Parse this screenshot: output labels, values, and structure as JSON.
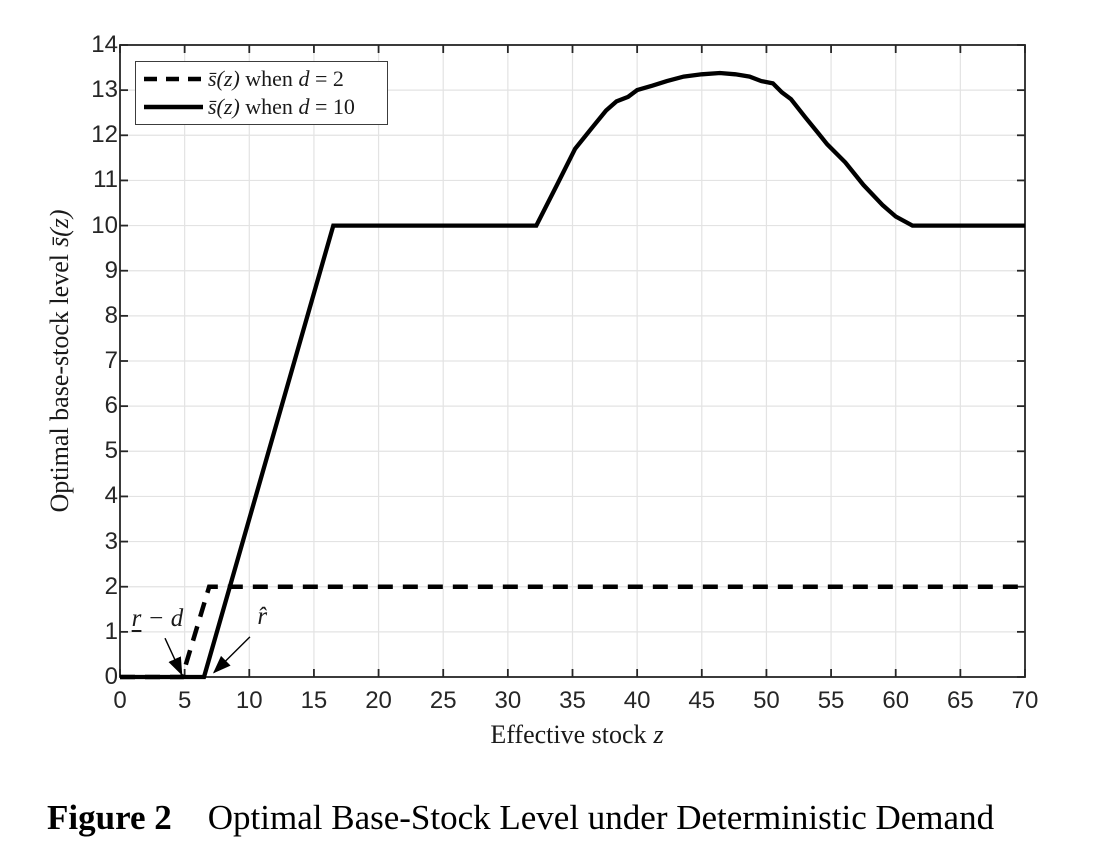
{
  "figure": {
    "caption_label": "Figure 2",
    "caption_title": "Optimal Base-Stock Level under Deterministic Demand"
  },
  "chart_data": {
    "type": "line",
    "title": "",
    "xlabel": {
      "text": "Effective stock",
      "math": "z",
      "full": "Effective stock z"
    },
    "ylabel": {
      "text": "Optimal base-stock level",
      "math": "s̄(z)",
      "full": "Optimal base-stock level s̄(z)"
    },
    "xlim": [
      0,
      70
    ],
    "ylim": [
      0,
      14
    ],
    "xticks": [
      0,
      5,
      10,
      15,
      20,
      25,
      30,
      35,
      40,
      45,
      50,
      55,
      60,
      65,
      70
    ],
    "yticks": [
      0,
      1,
      2,
      3,
      4,
      5,
      6,
      7,
      8,
      9,
      10,
      11,
      12,
      13,
      14
    ],
    "grid": true,
    "colors": {
      "line": "#000000",
      "axis": "#262626",
      "grid": "#e3e3e3"
    },
    "legend": {
      "position": "top-left",
      "entries": [
        {
          "name": "s̄(z) when d = 2",
          "symbol": "s̄(z)",
          "connector": " when ",
          "var": "d",
          "rest": " = 2",
          "line_style": "dashed"
        },
        {
          "name": "s̄(z) when d = 10",
          "symbol": "s̄(z)",
          "connector": " when ",
          "var": "d",
          "rest": " = 10",
          "line_style": "solid"
        }
      ]
    },
    "series": [
      {
        "name": "s̄(z) when d = 2",
        "style": "dashed",
        "points": [
          [
            0,
            0
          ],
          [
            4.8,
            0
          ],
          [
            6.9,
            2
          ],
          [
            70,
            2
          ]
        ]
      },
      {
        "name": "s̄(z) when d = 10",
        "style": "solid",
        "points": [
          [
            0,
            0
          ],
          [
            6.5,
            0
          ],
          [
            16.5,
            10
          ],
          [
            32.2,
            10
          ],
          [
            33.8,
            10.9
          ],
          [
            35.2,
            11.7
          ],
          [
            36.6,
            12.2
          ],
          [
            37.6,
            12.55
          ],
          [
            38.4,
            12.75
          ],
          [
            39.3,
            12.85
          ],
          [
            40,
            13
          ],
          [
            41.2,
            13.1
          ],
          [
            42.3,
            13.2
          ],
          [
            43.6,
            13.3
          ],
          [
            45,
            13.35
          ],
          [
            46.4,
            13.38
          ],
          [
            47.6,
            13.35
          ],
          [
            48.7,
            13.3
          ],
          [
            49.6,
            13.2
          ],
          [
            50.5,
            13.15
          ],
          [
            51.2,
            12.95
          ],
          [
            51.9,
            12.8
          ],
          [
            53,
            12.4
          ],
          [
            54,
            12.05
          ],
          [
            54.7,
            11.8
          ],
          [
            56.1,
            11.4
          ],
          [
            57.5,
            10.9
          ],
          [
            59,
            10.45
          ],
          [
            60,
            10.2
          ],
          [
            61.3,
            10
          ],
          [
            70,
            10
          ]
        ]
      }
    ],
    "annotations": [
      {
        "head": "r",
        "underline_head": true,
        "mid": " − ",
        "var2": "d",
        "text_x": 2.9,
        "text_y": 1.28,
        "arrow_from": [
          3.48,
          0.86
        ],
        "arrow_to": [
          4.77,
          0.06
        ]
      },
      {
        "head": "r̂",
        "underline_head": false,
        "mid": "",
        "var2": "",
        "text_x": 11.0,
        "text_y": 1.33,
        "arrow_from": [
          10.05,
          0.89
        ],
        "arrow_to": [
          7.27,
          0.1
        ]
      }
    ]
  }
}
